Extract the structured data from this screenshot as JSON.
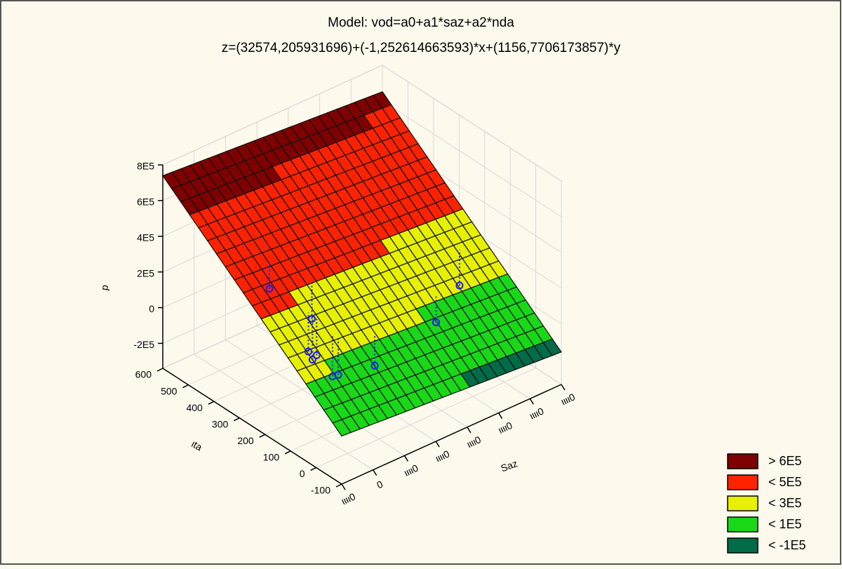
{
  "chart_data": {
    "type": "surface3d",
    "title": "Model: vod=a0+a1*saz+a2*nda",
    "subtitle": "z=(32574,205931696)+(-1,252614663593)*x+(1156,7706173857)*y",
    "model": {
      "a0": 32574.205931696,
      "a1": -1.252614663593,
      "a2": 1156.7706173857
    },
    "xlabel": "Saz",
    "ylabel": "ιta",
    "zlabel": "p",
    "xlim": [
      -10000,
      60000
    ],
    "xticks": [
      {
        "value": -10000,
        "label": "ιιιι0"
      },
      0,
      {
        "value": 10000,
        "label": "ιιιι0"
      },
      {
        "value": 20000,
        "label": "ιιιι0"
      },
      {
        "value": 30000,
        "label": "ιιιι0"
      },
      {
        "value": 40000,
        "label": "ιιιι0"
      },
      {
        "value": 50000,
        "label": "ιιιι0"
      },
      {
        "value": 60000,
        "label": "ιιιι0"
      }
    ],
    "ylim": [
      -100,
      600
    ],
    "yticks": [
      -100,
      0,
      100,
      200,
      300,
      400,
      500,
      600
    ],
    "zlim": [
      -340000,
      800000
    ],
    "zticks": [
      {
        "value": -200000,
        "label": "-2E5"
      },
      0,
      {
        "value": 200000,
        "label": "2E5"
      },
      {
        "value": 400000,
        "label": "4E5"
      },
      {
        "value": 600000,
        "label": "6E5"
      },
      {
        "value": 800000,
        "label": "8E5"
      }
    ],
    "grid": true,
    "points": {
      "color": "#1a1aff",
      "x": [
        2000,
        9000,
        3000,
        3500,
        4000,
        5000,
        6000,
        16000,
        38000,
        52000
      ],
      "y": [
        330,
        250,
        190,
        180,
        170,
        120,
        110,
        90,
        120,
        200
      ],
      "z": [
        260000,
        110000,
        30000,
        -10000,
        20000,
        -60000,
        -50000,
        -60000,
        -20000,
        0
      ]
    },
    "legend": [
      {
        "name": "> 6E5",
        "color": "#7f0000",
        "level": 600000
      },
      {
        "name": "< 5E5",
        "color": "#ff2200",
        "level": 500000
      },
      {
        "name": "< 3E5",
        "color": "#e6f000",
        "level": 300000
      },
      {
        "name": "< 1E5",
        "color": "#18d818",
        "level": 100000
      },
      {
        "name": "< -1E5",
        "color": "#006b48",
        "level": -100000
      }
    ]
  }
}
